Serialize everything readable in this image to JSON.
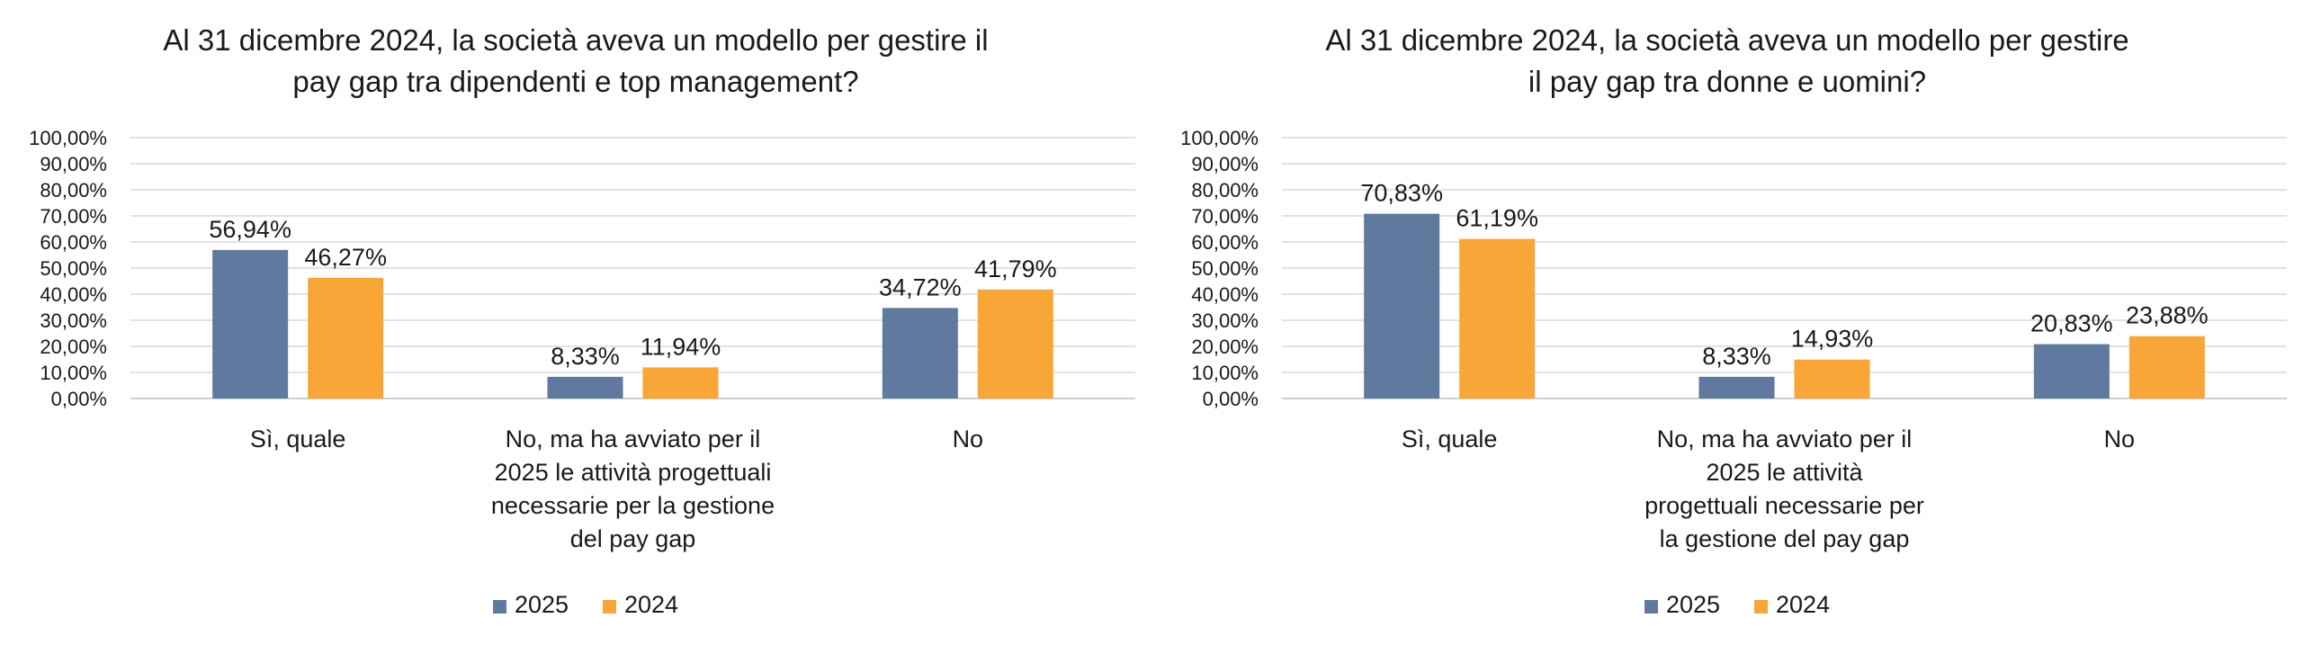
{
  "chart_data": [
    {
      "type": "bar",
      "title": "Al 31 dicembre 2024, la società aveva un modello per gestire il pay gap tra dipendenti e top management?",
      "title_lines": [
        "Al 31 dicembre 2024, la società aveva un modello per gestire il",
        "pay gap tra dipendenti e top management?"
      ],
      "categories": [
        "Sì, quale",
        "No, ma ha avviato per il 2025 le attività progettuali necessarie per la gestione del pay gap",
        "No"
      ],
      "category_lines": [
        [
          "Sì, quale"
        ],
        [
          "No, ma ha avviato per il",
          "2025 le attività progettuali",
          "necessarie per la gestione",
          "del pay gap"
        ],
        [
          "No"
        ]
      ],
      "series": [
        {
          "name": "2025",
          "values": [
            56.94,
            8.33,
            34.72
          ],
          "labels": [
            "56,94%",
            "8,33%",
            "34,72%"
          ],
          "color": "#5f7a9e"
        },
        {
          "name": "2024",
          "values": [
            46.27,
            11.94,
            41.79
          ],
          "labels": [
            "46,27%",
            "11,94%",
            "41,79%"
          ],
          "color": "#f9a638"
        }
      ],
      "yticks": [
        "0,00%",
        "10,00%",
        "20,00%",
        "30,00%",
        "40,00%",
        "50,00%",
        "60,00%",
        "70,00%",
        "80,00%",
        "90,00%",
        "100,00%"
      ],
      "ylim": [
        0,
        100
      ],
      "xlabel": "",
      "ylabel": "",
      "grid": true,
      "legend_position": "bottom"
    },
    {
      "type": "bar",
      "title": "Al 31 dicembre 2024, la società aveva un modello per gestire il pay gap tra donne e uomini?",
      "title_lines": [
        "Al 31 dicembre 2024, la società aveva un modello per gestire",
        "il pay gap tra donne e uomini?"
      ],
      "categories": [
        "Sì, quale",
        "No, ma ha avviato per il 2025 le attività progettuali necessarie per la gestione del pay gap",
        "No"
      ],
      "category_lines": [
        [
          "Sì, quale"
        ],
        [
          "No, ma ha avviato per il",
          "2025 le attività",
          "progettuali necessarie per",
          "la gestione del pay gap"
        ],
        [
          "No"
        ]
      ],
      "series": [
        {
          "name": "2025",
          "values": [
            70.83,
            8.33,
            20.83
          ],
          "labels": [
            "70,83%",
            "8,33%",
            "20,83%"
          ],
          "color": "#5f7a9e"
        },
        {
          "name": "2024",
          "values": [
            61.19,
            14.93,
            23.88
          ],
          "labels": [
            "61,19%",
            "14,93%",
            "23,88%"
          ],
          "color": "#f9a638"
        }
      ],
      "yticks": [
        "0,00%",
        "10,00%",
        "20,00%",
        "30,00%",
        "40,00%",
        "50,00%",
        "60,00%",
        "70,00%",
        "80,00%",
        "90,00%",
        "100,00%"
      ],
      "ylim": [
        0,
        100
      ],
      "xlabel": "",
      "ylabel": "",
      "grid": true,
      "legend_position": "bottom"
    }
  ]
}
